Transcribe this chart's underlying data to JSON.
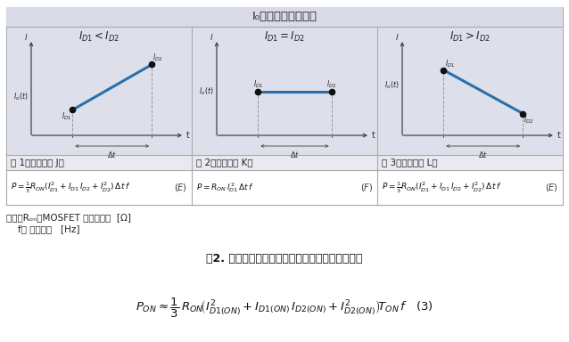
{
  "title": "I₀随时间的变化情况",
  "bg_color": "#f0f0f0",
  "table_border_color": "#aaaaaa",
  "cell_bg": "#dde0ea",
  "white_bg": "#ffffff",
  "header_bg": "#d8dae8",
  "note_line1": "但是，Rₒₙ：MOSFET 的导通电阶  [Ω]",
  "note_line2": "    f： 开关频率   [Hz]",
  "table_caption": "表2. 各种波形形状的线性近似法导通损耗计算公式",
  "line_color": "#2a6faa",
  "dot_color": "#111111",
  "axis_color": "#444444",
  "dashed_color": "#999999",
  "case_titles": [
    "$I_{D1}<I_{D2}$",
    "$I_{D1}=I_{D2}$",
    "$I_{D1}>I_{D2}$"
  ],
  "case_labels": [
    "例 1（参见附表 J）",
    "例 2（参见附表 K）",
    "例 3（参见附表 L）"
  ]
}
